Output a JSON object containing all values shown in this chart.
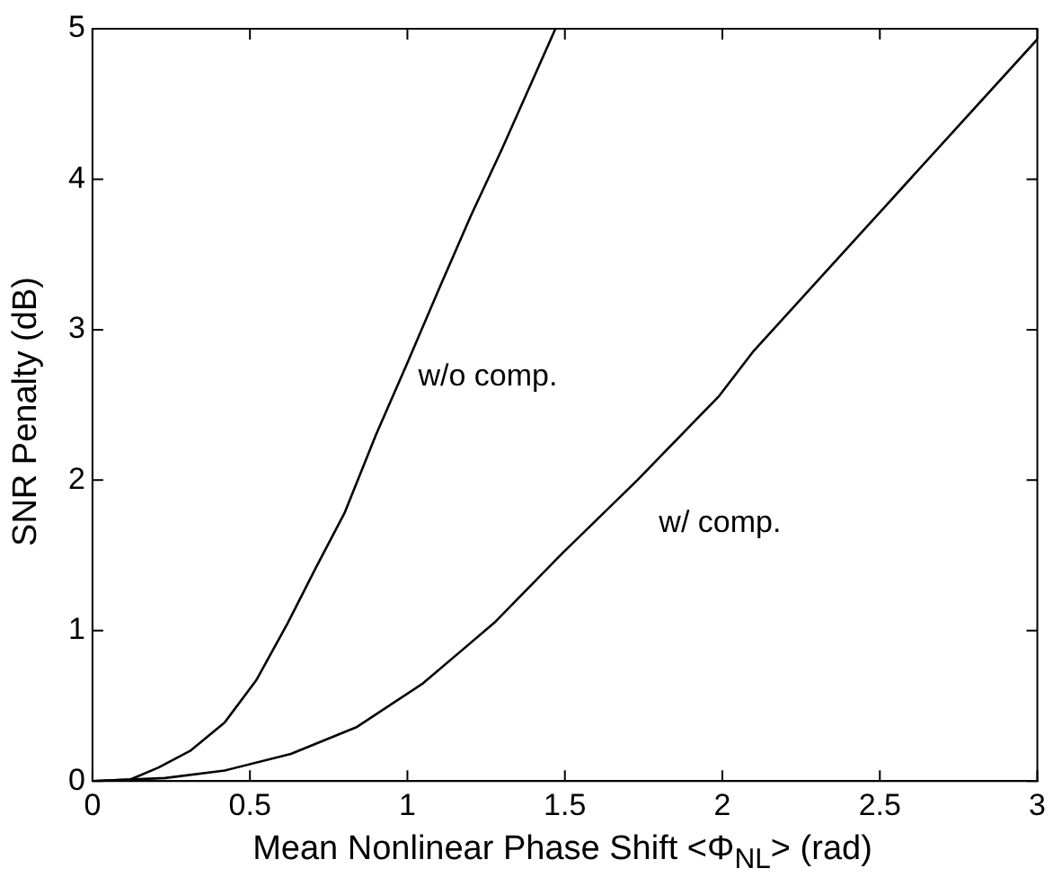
{
  "chart_data": {
    "type": "line",
    "xlabel": "Mean Nonlinear Phase Shift <Φ$_{NL}$> (rad)",
    "ylabel": "SNR Penalty (dB)",
    "xlim": [
      0,
      3
    ],
    "ylim": [
      0,
      5
    ],
    "xticks": [
      0,
      0.5,
      1,
      1.5,
      2,
      2.5,
      3
    ],
    "yticks": [
      0,
      1,
      2,
      3,
      4,
      5
    ],
    "grid": false,
    "legend": false,
    "marker": "none",
    "line_style": "solid",
    "series": [
      {
        "name": "w/o comp.",
        "color": "#000000",
        "x": [
          0,
          0.12,
          0.21,
          0.31,
          0.42,
          0.52,
          0.62,
          0.71,
          0.8,
          0.9,
          1.0,
          1.1,
          1.2,
          1.3,
          1.4,
          1.47
        ],
        "values": [
          0,
          0.01,
          0.09,
          0.2,
          0.39,
          0.67,
          1.05,
          1.42,
          1.78,
          2.3,
          2.78,
          3.27,
          3.75,
          4.2,
          4.67,
          5
        ]
      },
      {
        "name": "w/ comp.",
        "color": "#000000",
        "x": [
          0,
          0.23,
          0.42,
          0.63,
          0.84,
          1.05,
          1.28,
          1.49,
          1.73,
          1.99,
          2.1,
          2.5,
          3
        ],
        "values": [
          0,
          0.02,
          0.07,
          0.18,
          0.36,
          0.65,
          1.06,
          1.51,
          2.0,
          2.56,
          2.86,
          3.78,
          4.93
        ]
      }
    ]
  }
}
